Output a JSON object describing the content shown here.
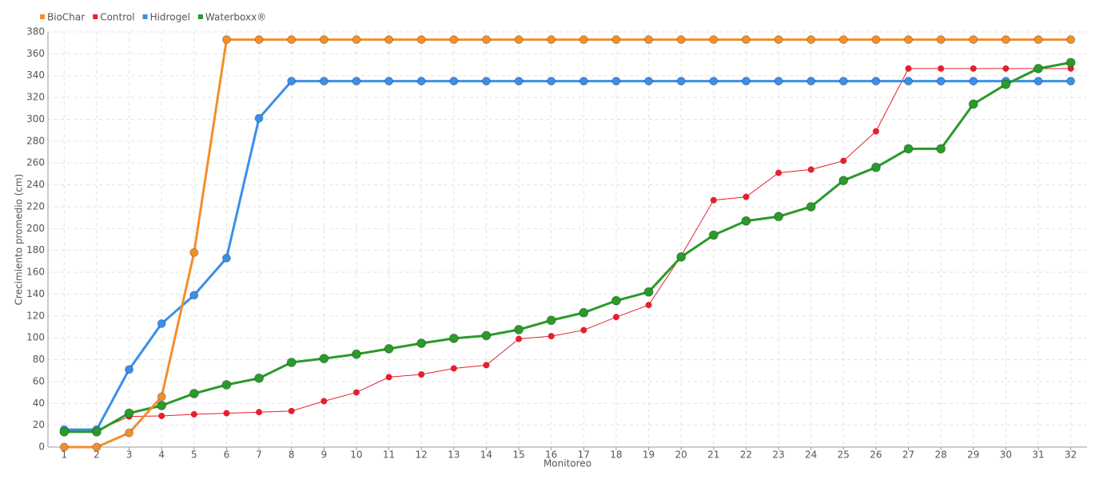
{
  "chart_data": {
    "type": "line",
    "x_label": "Monitoreo",
    "y_label": "Crecimiento promedio (cm)",
    "categories": [
      1,
      2,
      3,
      4,
      5,
      6,
      7,
      8,
      9,
      10,
      11,
      12,
      13,
      14,
      15,
      16,
      17,
      18,
      19,
      20,
      21,
      22,
      23,
      24,
      25,
      26,
      27,
      28,
      29,
      30,
      31,
      32
    ],
    "ylim": [
      0,
      380
    ],
    "yticks": [
      0,
      20,
      40,
      60,
      80,
      100,
      120,
      140,
      160,
      180,
      200,
      220,
      240,
      260,
      280,
      300,
      320,
      340,
      360,
      380
    ],
    "grid": true,
    "legend": "top-left",
    "series": [
      {
        "name": "BioChar",
        "color": "#f28f2c",
        "values": [
          0,
          0,
          13,
          46,
          178,
          373,
          373,
          373,
          373,
          373,
          373,
          373,
          373,
          373,
          373,
          373,
          373,
          373,
          373,
          373,
          373,
          373,
          373,
          373,
          373,
          373,
          373,
          373,
          373,
          373,
          373,
          373
        ]
      },
      {
        "name": "Control",
        "color": "#e5202e",
        "values": [
          15,
          15,
          28,
          28.5,
          30,
          31,
          32,
          33,
          42,
          50,
          64,
          66.5,
          72,
          75,
          99,
          101.5,
          107,
          119,
          130,
          175,
          226,
          229,
          251,
          254,
          262,
          289,
          346.5,
          346.5,
          346.5,
          346.5,
          346.5,
          346.5
        ]
      },
      {
        "name": "Hidrogel",
        "color": "#3b8fe8",
        "values": [
          16,
          16,
          71,
          113,
          139,
          173,
          301,
          335,
          335,
          335,
          335,
          335,
          335,
          335,
          335,
          335,
          335,
          335,
          335,
          335,
          335,
          335,
          335,
          335,
          335,
          335,
          335,
          335,
          335,
          335,
          335,
          335
        ]
      },
      {
        "name": "Waterboxx®",
        "color": "#2a9a2a",
        "values": [
          14,
          14,
          31,
          38,
          49,
          57,
          63,
          77.5,
          81,
          85,
          90,
          95,
          99.5,
          102,
          107.5,
          116,
          123,
          134,
          142,
          174,
          194,
          207,
          211,
          220,
          244,
          256,
          273,
          273,
          314,
          332,
          346.5,
          352
        ]
      }
    ]
  }
}
